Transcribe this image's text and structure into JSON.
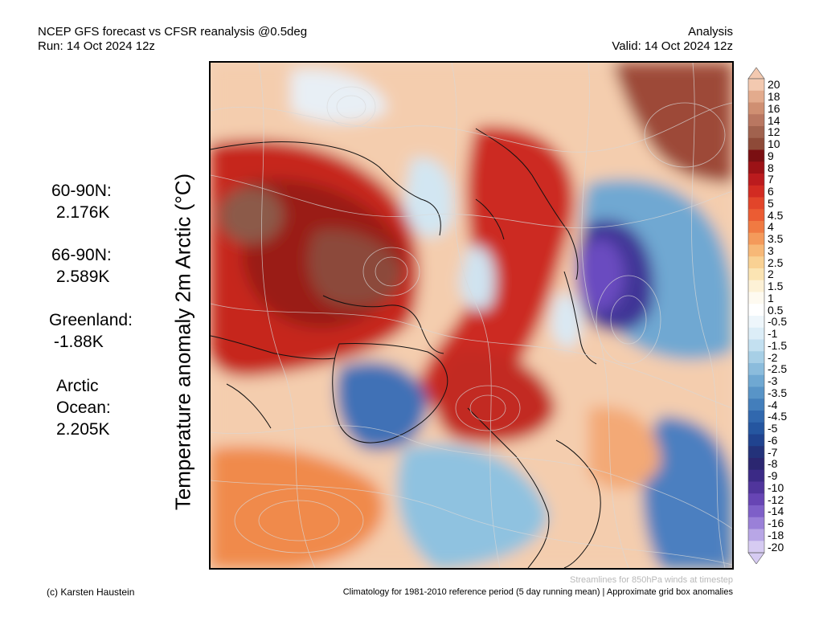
{
  "header": {
    "title": "NCEP GFS forecast vs CFSR reanalysis @0.5deg",
    "run": "Run: 14 Oct 2024 12z",
    "type": "Analysis",
    "valid": "Valid: 14 Oct 2024 12z"
  },
  "map_label": "Temperature anomaly 2m Arctic (°C)",
  "stats": [
    {
      "text": "60-90N:\n 2.176K"
    },
    {
      "text": "66-90N:\n 2.589K"
    },
    {
      "text": "Greenland:\n -1.88K"
    },
    {
      "text": "Arctic\nOcean:\n2.205K"
    }
  ],
  "colorbar": {
    "labels": [
      "20",
      "18",
      "16",
      "14",
      "12",
      "10",
      "9",
      "8",
      "7",
      "6",
      "5",
      "4.5",
      "4",
      "3.5",
      "3",
      "2.5",
      "2",
      "1.5",
      "1",
      "0.5",
      "-0.5",
      "-1",
      "-1.5",
      "-2",
      "-2.5",
      "-3",
      "-3.5",
      "-4",
      "-4.5",
      "-5",
      "-6",
      "-7",
      "-8",
      "-9",
      "-10",
      "-12",
      "-14",
      "-16",
      "-18",
      "-20"
    ],
    "colors": [
      "#f3c9b0",
      "#e3ab8d",
      "#cf8f72",
      "#b97761",
      "#a1624e",
      "#8e4a38",
      "#7a0f12",
      "#9c1216",
      "#bb1b1e",
      "#d22b22",
      "#e2452a",
      "#eb5c33",
      "#f07a42",
      "#f49a5b",
      "#f7b877",
      "#f9d193",
      "#fbe4b3",
      "#fdf1d6",
      "#fefaf0",
      "#ffffff",
      "#eef6fb",
      "#dcedf7",
      "#c3e0f0",
      "#a7cfe6",
      "#8bbcdc",
      "#6fa8d2",
      "#5894c7",
      "#437ebb",
      "#3168ae",
      "#2556a0",
      "#20438f",
      "#23327a",
      "#2b2670",
      "#3b2a86",
      "#50359c",
      "#6745b4",
      "#7e5fc8",
      "#9a80d8",
      "#b8a6e6",
      "#d6cbf2"
    ]
  },
  "footer": {
    "credit": "(c) Karsten Haustein",
    "climatology": "Climatology for 1981-2010 reference period (5 day running mean) | Approximate grid box anomalies",
    "streamlines": "Streamlines for 850hPa winds at timestep"
  }
}
